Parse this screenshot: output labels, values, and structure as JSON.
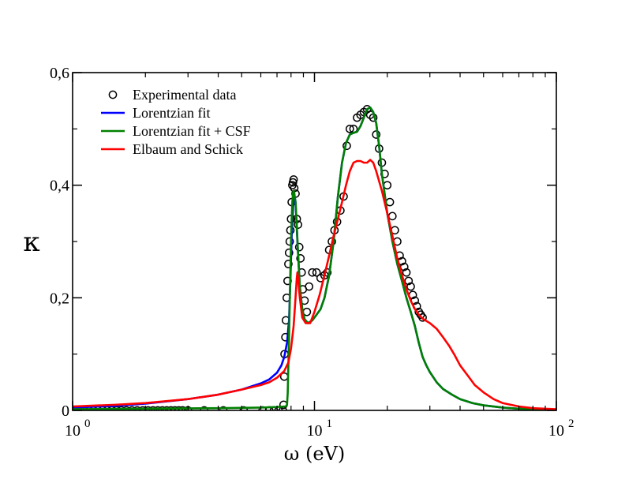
{
  "chart_data": {
    "type": "line",
    "xlabel": "ω (eV)",
    "ylabel": "κ",
    "xscale": "log",
    "xlim": [
      1,
      100
    ],
    "ylim": [
      0,
      0.6
    ],
    "grid": false,
    "legend_position": "top-left",
    "x_ticks": [
      {
        "value": 1,
        "base": "10",
        "exp": "0"
      },
      {
        "value": 10,
        "base": "10",
        "exp": "1"
      },
      {
        "value": 100,
        "base": "10",
        "exp": "2"
      }
    ],
    "y_ticks": [
      {
        "value": 0,
        "label": "0"
      },
      {
        "value": 0.2,
        "label": "0,2"
      },
      {
        "value": 0.4,
        "label": "0,4"
      },
      {
        "value": 0.6,
        "label": "0,6"
      }
    ],
    "series": [
      {
        "name": "Experimental data",
        "kind": "markers",
        "color": "#000000",
        "points": [
          [
            1.0,
            0.0
          ],
          [
            1.04,
            0.0
          ],
          [
            1.08,
            0.0
          ],
          [
            1.12,
            0.0
          ],
          [
            1.17,
            0.0
          ],
          [
            1.22,
            0.0
          ],
          [
            1.27,
            0.0
          ],
          [
            1.33,
            0.0
          ],
          [
            1.39,
            0.0
          ],
          [
            1.45,
            0.0
          ],
          [
            1.52,
            0.0
          ],
          [
            1.59,
            0.0
          ],
          [
            1.67,
            0.0
          ],
          [
            1.76,
            0.0
          ],
          [
            1.85,
            0.0
          ],
          [
            1.95,
            0.0
          ],
          [
            2.05,
            0.0
          ],
          [
            2.15,
            0.0
          ],
          [
            2.25,
            0.0
          ],
          [
            2.35,
            0.0
          ],
          [
            2.45,
            0.0
          ],
          [
            2.55,
            0.0
          ],
          [
            2.65,
            0.0
          ],
          [
            2.75,
            0.0
          ],
          [
            2.85,
            0.0
          ],
          [
            3.0,
            0.0
          ],
          [
            3.5,
            0.0
          ],
          [
            4.2,
            0.0
          ],
          [
            5.1,
            0.0
          ],
          [
            6.1,
            0.0
          ],
          [
            6.5,
            0.0
          ],
          [
            6.8,
            0.0
          ],
          [
            7.1,
            0.0
          ],
          [
            7.4,
            0.0
          ],
          [
            7.45,
            0.01
          ],
          [
            7.5,
            0.06
          ],
          [
            7.52,
            0.1
          ],
          [
            7.58,
            0.13
          ],
          [
            7.62,
            0.16
          ],
          [
            7.68,
            0.2
          ],
          [
            7.74,
            0.23
          ],
          [
            7.8,
            0.26
          ],
          [
            7.85,
            0.28
          ],
          [
            7.9,
            0.3
          ],
          [
            7.95,
            0.32
          ],
          [
            8.0,
            0.34
          ],
          [
            8.05,
            0.37
          ],
          [
            8.1,
            0.4
          ],
          [
            8.15,
            0.405
          ],
          [
            8.2,
            0.41
          ],
          [
            8.25,
            0.395
          ],
          [
            8.35,
            0.385
          ],
          [
            8.45,
            0.34
          ],
          [
            8.55,
            0.33
          ],
          [
            8.65,
            0.29
          ],
          [
            8.75,
            0.27
          ],
          [
            8.85,
            0.245
          ],
          [
            8.95,
            0.215
          ],
          [
            9.1,
            0.195
          ],
          [
            9.3,
            0.175
          ],
          [
            9.5,
            0.22
          ],
          [
            9.8,
            0.245
          ],
          [
            10.2,
            0.245
          ],
          [
            10.6,
            0.235
          ],
          [
            11.0,
            0.24
          ],
          [
            11.3,
            0.245
          ],
          [
            11.5,
            0.285
          ],
          [
            11.8,
            0.3
          ],
          [
            12.1,
            0.32
          ],
          [
            12.4,
            0.335
          ],
          [
            12.8,
            0.355
          ],
          [
            13.2,
            0.38
          ],
          [
            13.6,
            0.47
          ],
          [
            14.0,
            0.5
          ],
          [
            14.5,
            0.5
          ],
          [
            15.0,
            0.52
          ],
          [
            15.5,
            0.525
          ],
          [
            16.0,
            0.53
          ],
          [
            16.5,
            0.535
          ],
          [
            17.0,
            0.525
          ],
          [
            17.5,
            0.52
          ],
          [
            18.0,
            0.49
          ],
          [
            18.5,
            0.465
          ],
          [
            19.0,
            0.44
          ],
          [
            19.5,
            0.42
          ],
          [
            20.0,
            0.4
          ],
          [
            20.5,
            0.37
          ],
          [
            21.0,
            0.345
          ],
          [
            21.5,
            0.32
          ],
          [
            22.0,
            0.3
          ],
          [
            22.5,
            0.275
          ],
          [
            23.0,
            0.265
          ],
          [
            23.5,
            0.255
          ],
          [
            24.0,
            0.245
          ],
          [
            24.5,
            0.23
          ],
          [
            25.0,
            0.22
          ],
          [
            25.5,
            0.205
          ],
          [
            26.0,
            0.195
          ],
          [
            26.5,
            0.185
          ],
          [
            27.0,
            0.175
          ],
          [
            27.5,
            0.17
          ],
          [
            28.0,
            0.165
          ]
        ]
      },
      {
        "name": "Lorentzian fit",
        "kind": "line",
        "color": "#0000ff",
        "points": [
          [
            1.0,
            0.005
          ],
          [
            1.5,
            0.008
          ],
          [
            2.0,
            0.012
          ],
          [
            3.0,
            0.02
          ],
          [
            4.0,
            0.028
          ],
          [
            5.0,
            0.037
          ],
          [
            6.0,
            0.048
          ],
          [
            6.5,
            0.055
          ],
          [
            7.0,
            0.067
          ],
          [
            7.3,
            0.08
          ],
          [
            7.5,
            0.095
          ],
          [
            7.7,
            0.12
          ],
          [
            7.85,
            0.16
          ],
          [
            7.95,
            0.23
          ],
          [
            8.05,
            0.31
          ],
          [
            8.15,
            0.36
          ],
          [
            8.25,
            0.385
          ],
          [
            8.35,
            0.37
          ],
          [
            8.5,
            0.3
          ],
          [
            8.7,
            0.22
          ],
          [
            8.9,
            0.18
          ],
          [
            9.1,
            0.162
          ],
          [
            9.4,
            0.155
          ],
          [
            9.8,
            0.16
          ],
          [
            10.2,
            0.17
          ],
          [
            10.6,
            0.18
          ],
          [
            11.0,
            0.2
          ],
          [
            11.5,
            0.24
          ],
          [
            12.0,
            0.3
          ],
          [
            12.5,
            0.38
          ],
          [
            13.0,
            0.44
          ],
          [
            13.5,
            0.475
          ],
          [
            14.0,
            0.49
          ],
          [
            14.5,
            0.493
          ],
          [
            15.0,
            0.495
          ],
          [
            15.5,
            0.505
          ],
          [
            16.0,
            0.52
          ],
          [
            16.5,
            0.535
          ],
          [
            17.0,
            0.538
          ],
          [
            17.5,
            0.53
          ],
          [
            18.0,
            0.51
          ],
          [
            18.5,
            0.47
          ],
          [
            19.0,
            0.42
          ],
          [
            20.0,
            0.35
          ],
          [
            21.0,
            0.3
          ],
          [
            22.0,
            0.26
          ],
          [
            23.0,
            0.23
          ],
          [
            24.0,
            0.2
          ],
          [
            25.0,
            0.175
          ],
          [
            26.0,
            0.15
          ],
          [
            27.0,
            0.12
          ],
          [
            28.0,
            0.095
          ],
          [
            29.0,
            0.08
          ],
          [
            30.0,
            0.068
          ],
          [
            32.0,
            0.05
          ],
          [
            34.0,
            0.038
          ],
          [
            37.0,
            0.028
          ],
          [
            40.0,
            0.02
          ],
          [
            45.0,
            0.013
          ],
          [
            50.0,
            0.009
          ],
          [
            60.0,
            0.005
          ],
          [
            70.0,
            0.003
          ],
          [
            80.0,
            0.002
          ],
          [
            100.0,
            0.001
          ]
        ]
      },
      {
        "name": "Lorentzian fit + CSF",
        "kind": "line",
        "color": "#008000",
        "points": [
          [
            1.0,
            0.002
          ],
          [
            2.0,
            0.003
          ],
          [
            4.0,
            0.004
          ],
          [
            6.0,
            0.005
          ],
          [
            7.0,
            0.006
          ],
          [
            7.6,
            0.007
          ],
          [
            7.7,
            0.01
          ],
          [
            7.75,
            0.03
          ],
          [
            7.8,
            0.08
          ],
          [
            7.85,
            0.13
          ],
          [
            7.9,
            0.19
          ],
          [
            7.95,
            0.25
          ],
          [
            8.0,
            0.3
          ],
          [
            8.05,
            0.34
          ],
          [
            8.1,
            0.37
          ],
          [
            8.15,
            0.385
          ],
          [
            8.2,
            0.39
          ],
          [
            8.25,
            0.385
          ],
          [
            8.35,
            0.37
          ],
          [
            8.45,
            0.33
          ],
          [
            8.55,
            0.28
          ],
          [
            8.7,
            0.22
          ],
          [
            8.9,
            0.18
          ],
          [
            9.1,
            0.162
          ],
          [
            9.4,
            0.155
          ],
          [
            9.8,
            0.16
          ],
          [
            10.2,
            0.17
          ],
          [
            10.6,
            0.18
          ],
          [
            11.0,
            0.2
          ],
          [
            11.5,
            0.24
          ],
          [
            12.0,
            0.3
          ],
          [
            12.5,
            0.38
          ],
          [
            13.0,
            0.44
          ],
          [
            13.5,
            0.475
          ],
          [
            14.0,
            0.49
          ],
          [
            14.5,
            0.493
          ],
          [
            15.0,
            0.495
          ],
          [
            15.5,
            0.505
          ],
          [
            16.0,
            0.52
          ],
          [
            16.5,
            0.535
          ],
          [
            17.0,
            0.538
          ],
          [
            17.5,
            0.53
          ],
          [
            18.0,
            0.51
          ],
          [
            18.5,
            0.47
          ],
          [
            19.0,
            0.42
          ],
          [
            20.0,
            0.35
          ],
          [
            21.0,
            0.3
          ],
          [
            22.0,
            0.26
          ],
          [
            23.0,
            0.23
          ],
          [
            24.0,
            0.2
          ],
          [
            25.0,
            0.175
          ],
          [
            26.0,
            0.15
          ],
          [
            27.0,
            0.12
          ],
          [
            28.0,
            0.095
          ],
          [
            29.0,
            0.08
          ],
          [
            30.0,
            0.068
          ],
          [
            32.0,
            0.05
          ],
          [
            34.0,
            0.038
          ],
          [
            37.0,
            0.028
          ],
          [
            40.0,
            0.02
          ],
          [
            45.0,
            0.013
          ],
          [
            50.0,
            0.009
          ],
          [
            60.0,
            0.005
          ],
          [
            70.0,
            0.003
          ],
          [
            80.0,
            0.002
          ],
          [
            100.0,
            0.001
          ]
        ]
      },
      {
        "name": "Elbaum and Schick",
        "kind": "line",
        "color": "#ff0000",
        "points": [
          [
            1.0,
            0.007
          ],
          [
            1.5,
            0.01
          ],
          [
            2.0,
            0.013
          ],
          [
            3.0,
            0.02
          ],
          [
            4.0,
            0.028
          ],
          [
            5.0,
            0.037
          ],
          [
            6.0,
            0.045
          ],
          [
            6.5,
            0.05
          ],
          [
            7.0,
            0.058
          ],
          [
            7.5,
            0.07
          ],
          [
            7.8,
            0.085
          ],
          [
            8.0,
            0.11
          ],
          [
            8.2,
            0.15
          ],
          [
            8.35,
            0.2
          ],
          [
            8.45,
            0.235
          ],
          [
            8.5,
            0.245
          ],
          [
            8.55,
            0.235
          ],
          [
            8.7,
            0.2
          ],
          [
            8.9,
            0.165
          ],
          [
            9.2,
            0.155
          ],
          [
            9.6,
            0.155
          ],
          [
            10.0,
            0.175
          ],
          [
            10.5,
            0.205
          ],
          [
            11.0,
            0.24
          ],
          [
            11.5,
            0.275
          ],
          [
            12.0,
            0.31
          ],
          [
            12.5,
            0.34
          ],
          [
            13.0,
            0.37
          ],
          [
            13.5,
            0.4
          ],
          [
            14.0,
            0.425
          ],
          [
            14.5,
            0.44
          ],
          [
            15.0,
            0.443
          ],
          [
            15.5,
            0.443
          ],
          [
            16.0,
            0.44
          ],
          [
            16.5,
            0.44
          ],
          [
            17.0,
            0.445
          ],
          [
            17.5,
            0.44
          ],
          [
            18.0,
            0.425
          ],
          [
            19.0,
            0.39
          ],
          [
            20.0,
            0.35
          ],
          [
            21.0,
            0.31
          ],
          [
            22.0,
            0.27
          ],
          [
            23.0,
            0.24
          ],
          [
            24.0,
            0.215
          ],
          [
            25.0,
            0.195
          ],
          [
            26.0,
            0.18
          ],
          [
            27.0,
            0.17
          ],
          [
            28.0,
            0.163
          ],
          [
            30.0,
            0.155
          ],
          [
            32.0,
            0.145
          ],
          [
            34.0,
            0.13
          ],
          [
            36.0,
            0.115
          ],
          [
            38.0,
            0.098
          ],
          [
            40.0,
            0.08
          ],
          [
            43.0,
            0.062
          ],
          [
            46.0,
            0.045
          ],
          [
            50.0,
            0.032
          ],
          [
            55.0,
            0.02
          ],
          [
            60.0,
            0.013
          ],
          [
            70.0,
            0.007
          ],
          [
            80.0,
            0.004
          ],
          [
            100.0,
            0.002
          ]
        ]
      }
    ]
  }
}
